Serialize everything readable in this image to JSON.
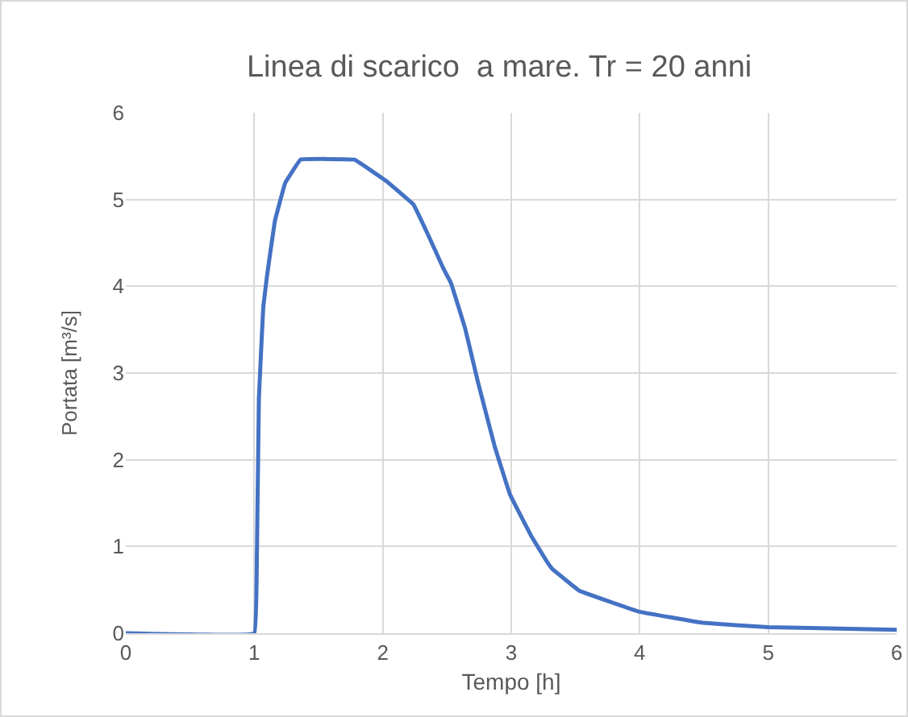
{
  "chart_data": {
    "type": "line",
    "title": "Linea di scarico  a mare. Tr = 20 anni",
    "xlabel": "Tempo [h]",
    "ylabel": "Portata [m³/s]",
    "series": [
      {
        "color": "#4472c4",
        "x": [
          0,
          1.0,
          1.02,
          1.036,
          1.07,
          1.1,
          1.16,
          1.24,
          1.36,
          1.78,
          2.03,
          2.24,
          2.36,
          2.47,
          2.53,
          2.64,
          2.74,
          2.87,
          2.99,
          3.16,
          3.28,
          3.32,
          3.53,
          3.99,
          4.49,
          5.0,
          6.0
        ],
        "values": [
          0,
          0,
          0.86,
          2.71,
          3.76,
          4.13,
          4.75,
          5.19,
          5.46,
          5.46,
          5.21,
          4.94,
          4.57,
          4.21,
          4.04,
          3.52,
          2.9,
          2.16,
          1.6,
          1.11,
          0.82,
          0.74,
          0.49,
          0.25,
          0.12,
          0.07,
          0.04
        ]
      }
    ],
    "xlim": [
      0,
      6
    ],
    "xticks": [
      0,
      1,
      2,
      3,
      4,
      5,
      6
    ],
    "ylim": [
      0,
      6
    ],
    "yticks": [
      0,
      1,
      2,
      3,
      4,
      5,
      6
    ],
    "grid": true,
    "marker": "none",
    "line_style": "solid"
  }
}
